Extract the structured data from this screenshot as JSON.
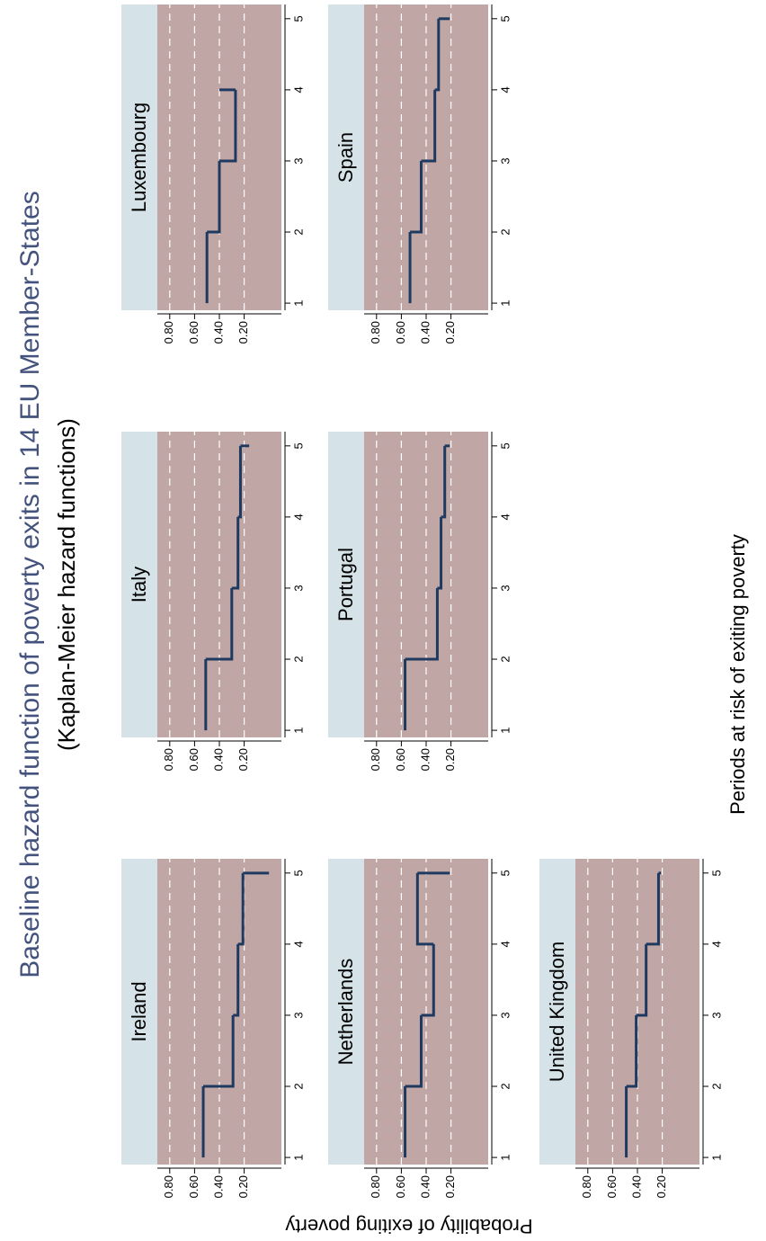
{
  "title": "Baseline hazard function of poverty exits in 14 EU Member-States",
  "subtitle": "(Kaplan-Meier hazard functions)",
  "y_label": "Probability of exiting poverty",
  "x_label": "Periods at risk of exiting poverty",
  "chart_data": [
    {
      "type": "line",
      "drawstyle": "steps-post",
      "title": "Ireland",
      "x": [
        1,
        2,
        3,
        4,
        5
      ],
      "series": [
        {
          "color": "#1f3a60",
          "values": [
            0.53,
            0.29,
            0.25,
            0.21,
            0.0
          ]
        }
      ],
      "xlim": [
        0.9,
        5.2
      ],
      "ylim": [
        -0.1,
        0.9
      ],
      "xticks": [
        1,
        2,
        3,
        4,
        5
      ],
      "yticks": [
        {
          "value": 0.8,
          "label": "0.80"
        },
        {
          "value": 0.6,
          "label": "0.60"
        },
        {
          "value": 0.4,
          "label": "0.40"
        },
        {
          "value": 0.2,
          "label": "0.20"
        }
      ],
      "grid": true
    },
    {
      "type": "line",
      "drawstyle": "steps-post",
      "title": "Italy",
      "x": [
        1,
        2,
        3,
        4,
        5
      ],
      "series": [
        {
          "color": "#1f3a60",
          "values": [
            0.51,
            0.3,
            0.25,
            0.23,
            0.16
          ]
        }
      ],
      "xlim": [
        0.9,
        5.2
      ],
      "ylim": [
        -0.1,
        0.9
      ],
      "xticks": [
        1,
        2,
        3,
        4,
        5
      ],
      "yticks": [
        {
          "value": 0.8,
          "label": "0.80"
        },
        {
          "value": 0.6,
          "label": "0.60"
        },
        {
          "value": 0.4,
          "label": "0.40"
        },
        {
          "value": 0.2,
          "label": "0.20"
        }
      ],
      "grid": true
    },
    {
      "type": "line",
      "drawstyle": "steps-post",
      "title": "Luxembourg",
      "x": [
        1,
        2,
        3,
        4,
        5
      ],
      "series": [
        {
          "color": "#1f3a60",
          "values": [
            0.5,
            0.4,
            0.27,
            0.4,
            null
          ]
        }
      ],
      "xlim": [
        0.9,
        5.2
      ],
      "ylim": [
        -0.1,
        0.9
      ],
      "xticks": [
        1,
        2,
        3,
        4,
        5
      ],
      "yticks": [
        {
          "value": 0.8,
          "label": "0.80"
        },
        {
          "value": 0.6,
          "label": "0.60"
        },
        {
          "value": 0.4,
          "label": "0.40"
        },
        {
          "value": 0.2,
          "label": "0.20"
        }
      ],
      "grid": true
    },
    {
      "type": "line",
      "drawstyle": "steps-post",
      "title": "Netherlands",
      "x": [
        1,
        2,
        3,
        4,
        5
      ],
      "series": [
        {
          "color": "#1f3a60",
          "values": [
            0.57,
            0.44,
            0.34,
            0.47,
            0.21
          ]
        }
      ],
      "xlim": [
        0.9,
        5.2
      ],
      "ylim": [
        -0.1,
        0.9
      ],
      "xticks": [
        1,
        2,
        3,
        4,
        5
      ],
      "yticks": [
        {
          "value": 0.8,
          "label": "0.80"
        },
        {
          "value": 0.6,
          "label": "0.60"
        },
        {
          "value": 0.4,
          "label": "0.40"
        },
        {
          "value": 0.2,
          "label": "0.20"
        }
      ],
      "grid": true
    },
    {
      "type": "line",
      "drawstyle": "steps-post",
      "title": "Portugal",
      "x": [
        1,
        2,
        3,
        4,
        5
      ],
      "series": [
        {
          "color": "#1f3a60",
          "values": [
            0.57,
            0.31,
            0.28,
            0.25,
            0.21
          ]
        }
      ],
      "xlim": [
        0.9,
        5.2
      ],
      "ylim": [
        -0.1,
        0.9
      ],
      "xticks": [
        1,
        2,
        3,
        4,
        5
      ],
      "yticks": [
        {
          "value": 0.8,
          "label": "0.80"
        },
        {
          "value": 0.6,
          "label": "0.60"
        },
        {
          "value": 0.4,
          "label": "0.40"
        },
        {
          "value": 0.2,
          "label": "0.20"
        }
      ],
      "grid": true
    },
    {
      "type": "line",
      "drawstyle": "steps-post",
      "title": "Spain",
      "x": [
        1,
        2,
        3,
        4,
        5
      ],
      "series": [
        {
          "color": "#1f3a60",
          "values": [
            0.53,
            0.44,
            0.33,
            0.3,
            0.21
          ]
        }
      ],
      "xlim": [
        0.9,
        5.2
      ],
      "ylim": [
        -0.1,
        0.9
      ],
      "xticks": [
        1,
        2,
        3,
        4,
        5
      ],
      "yticks": [
        {
          "value": 0.8,
          "label": "0.80"
        },
        {
          "value": 0.6,
          "label": "0.60"
        },
        {
          "value": 0.4,
          "label": "0.40"
        },
        {
          "value": 0.2,
          "label": "0.20"
        }
      ],
      "grid": true
    },
    {
      "type": "line",
      "drawstyle": "steps-post",
      "title": "United Kingdom",
      "x": [
        1,
        2,
        3,
        4,
        5
      ],
      "series": [
        {
          "color": "#1f3a60",
          "values": [
            0.49,
            0.41,
            0.33,
            0.23,
            0.21
          ]
        }
      ],
      "xlim": [
        0.9,
        5.2
      ],
      "ylim": [
        -0.1,
        0.9
      ],
      "xticks": [
        1,
        2,
        3,
        4,
        5
      ],
      "yticks": [
        {
          "value": 0.8,
          "label": "0.80"
        },
        {
          "value": 0.6,
          "label": "0.60"
        },
        {
          "value": 0.4,
          "label": "0.40"
        },
        {
          "value": 0.2,
          "label": "0.20"
        }
      ],
      "grid": true
    }
  ]
}
